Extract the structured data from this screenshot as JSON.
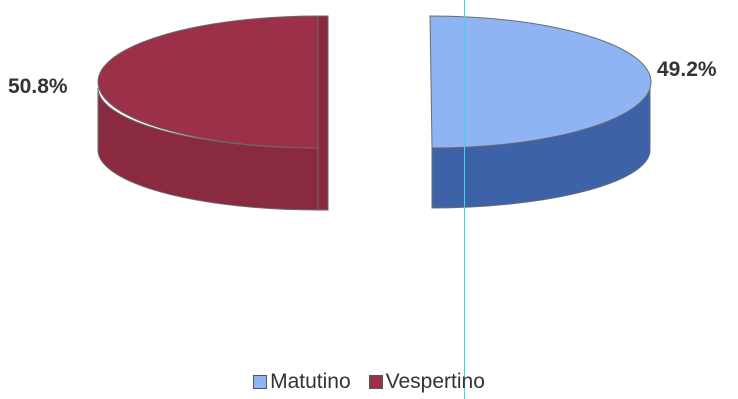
{
  "chart_data": {
    "type": "pie",
    "style": "3d-exploded",
    "slices": [
      {
        "label": "Matutino",
        "value": 49.2,
        "value_label": "49.2%",
        "color": "#8fb4f4",
        "side_color": "#3d62a8"
      },
      {
        "label": "Vespertino",
        "value": 50.8,
        "value_label": "50.8%",
        "color": "#9b3048",
        "side_color": "#8a2a40"
      }
    ],
    "legend": {
      "placement": "bottom",
      "items": [
        {
          "label": "Matutino",
          "color": "#8fb4f4"
        },
        {
          "label": "Vespertino",
          "color": "#9b3048"
        }
      ]
    }
  }
}
